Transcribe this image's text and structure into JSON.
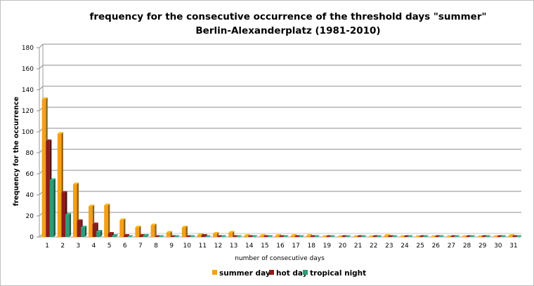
{
  "chart_data": {
    "type": "bar",
    "title_line1": "frequency for the consecutive occurrence of the threshold days \"summer\"",
    "title_line2": "Berlin-Alexanderplatz (1981-2010)",
    "xlabel": "number of consecutive days",
    "ylabel": "frequency for the occurrence",
    "ylim": [
      0,
      180
    ],
    "yticks": [
      0,
      20,
      40,
      60,
      80,
      100,
      120,
      140,
      160,
      180
    ],
    "grid": true,
    "legend_position": "bottom",
    "categories": [
      "1",
      "2",
      "3",
      "4",
      "5",
      "6",
      "7",
      "8",
      "9",
      "10",
      "11",
      "12",
      "13",
      "14",
      "15",
      "16",
      "17",
      "18",
      "19",
      "20",
      "21",
      "22",
      "23",
      "24",
      "25",
      "26",
      "27",
      "28",
      "29",
      "30",
      "31"
    ],
    "series": [
      {
        "name": "summer day",
        "color": "#f5a01a",
        "values": [
          131,
          98,
          50,
          29,
          30,
          16,
          9,
          11,
          4,
          9,
          2,
          3,
          4,
          1,
          1,
          1,
          1,
          1,
          0,
          0,
          0,
          0,
          1,
          0,
          0,
          0,
          0,
          0,
          0,
          0,
          1
        ]
      },
      {
        "name": "hot day",
        "color": "#8b1c1c",
        "values": [
          91,
          42,
          15,
          12,
          3,
          1,
          1,
          0,
          0,
          0,
          1,
          0,
          0,
          0,
          0,
          0,
          0,
          0,
          0,
          0,
          0,
          0,
          0,
          0,
          0,
          0,
          0,
          0,
          0,
          0,
          0
        ]
      },
      {
        "name": "tropical night",
        "color": "#2e9a78",
        "values": [
          54,
          21,
          9,
          5,
          1,
          0,
          1,
          0,
          0,
          0,
          0,
          0,
          0,
          0,
          0,
          0,
          0,
          0,
          0,
          0,
          0,
          0,
          0,
          0,
          0,
          0,
          0,
          0,
          0,
          0,
          0
        ]
      }
    ]
  }
}
